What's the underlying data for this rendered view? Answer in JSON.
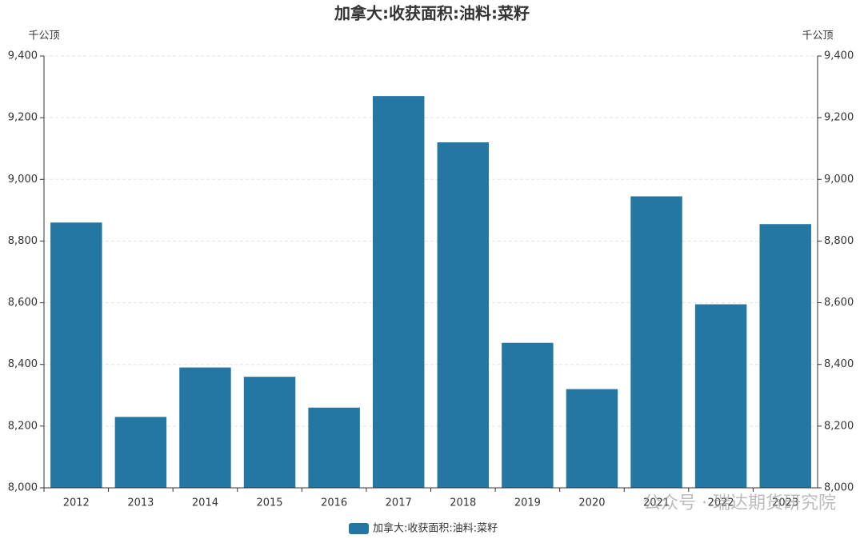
{
  "chart_data": {
    "type": "bar",
    "title": "加拿大:收获面积:油料:菜籽",
    "y_unit": "千公顶",
    "y2_unit": "千公顶",
    "categories": [
      "2012",
      "2013",
      "2014",
      "2015",
      "2016",
      "2017",
      "2018",
      "2019",
      "2020",
      "2021",
      "2022",
      "2023"
    ],
    "series": [
      {
        "name": "加拿大:收获面积:油料:菜籽",
        "color": "#2477a3",
        "values": [
          8860,
          8230,
          8390,
          8360,
          8260,
          9270,
          9120,
          8470,
          8320,
          8945,
          8595,
          8855
        ]
      }
    ],
    "ylim": [
      8000,
      9400
    ],
    "yticks": [
      {
        "value": 8000,
        "label": "8,000"
      },
      {
        "value": 8200,
        "label": "8,200"
      },
      {
        "value": 8400,
        "label": "8,400"
      },
      {
        "value": 8600,
        "label": "8,600"
      },
      {
        "value": 8800,
        "label": "8,800"
      },
      {
        "value": 9000,
        "label": "9,000"
      },
      {
        "value": 9200,
        "label": "9,200"
      },
      {
        "value": 9400,
        "label": "9,400"
      }
    ],
    "y2lim": [
      8000,
      9400
    ],
    "y2ticks": [
      {
        "value": 8000,
        "label": "8,000"
      },
      {
        "value": 8200,
        "label": "8,200"
      },
      {
        "value": 8400,
        "label": "8,400"
      },
      {
        "value": 8600,
        "label": "8,600"
      },
      {
        "value": 8800,
        "label": "8,800"
      },
      {
        "value": 9000,
        "label": "9,000"
      },
      {
        "value": 9200,
        "label": "9,200"
      },
      {
        "value": 9400,
        "label": "9,400"
      }
    ],
    "grid": true,
    "legend": "bottom",
    "watermark": "公众号 · 瑞达期货研究院"
  }
}
